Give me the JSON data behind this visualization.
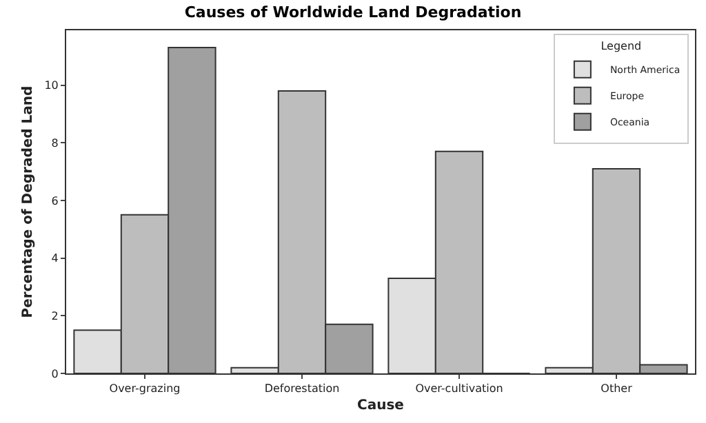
{
  "chart_data": {
    "type": "bar",
    "title": "Causes of Worldwide Land Degradation",
    "xlabel": "Cause",
    "ylabel": "Percentage of Degraded Land",
    "legend_title": "Legend",
    "categories": [
      "Over-grazing",
      "Deforestation",
      "Over-cultivation",
      "Other"
    ],
    "series": [
      {
        "name": "North America",
        "color": "#e0e0e0",
        "values": [
          1.5,
          0.2,
          3.3,
          0.2
        ]
      },
      {
        "name": "Europe",
        "color": "#bdbdbd",
        "values": [
          5.5,
          9.8,
          7.7,
          7.1
        ]
      },
      {
        "name": "Oceania",
        "color": "#a0a0a0",
        "values": [
          11.3,
          1.7,
          0,
          0.3
        ]
      }
    ],
    "ylim": [
      0,
      11.9
    ],
    "yticks": [
      0,
      2,
      4,
      6,
      8,
      10
    ],
    "legend": "top right"
  }
}
